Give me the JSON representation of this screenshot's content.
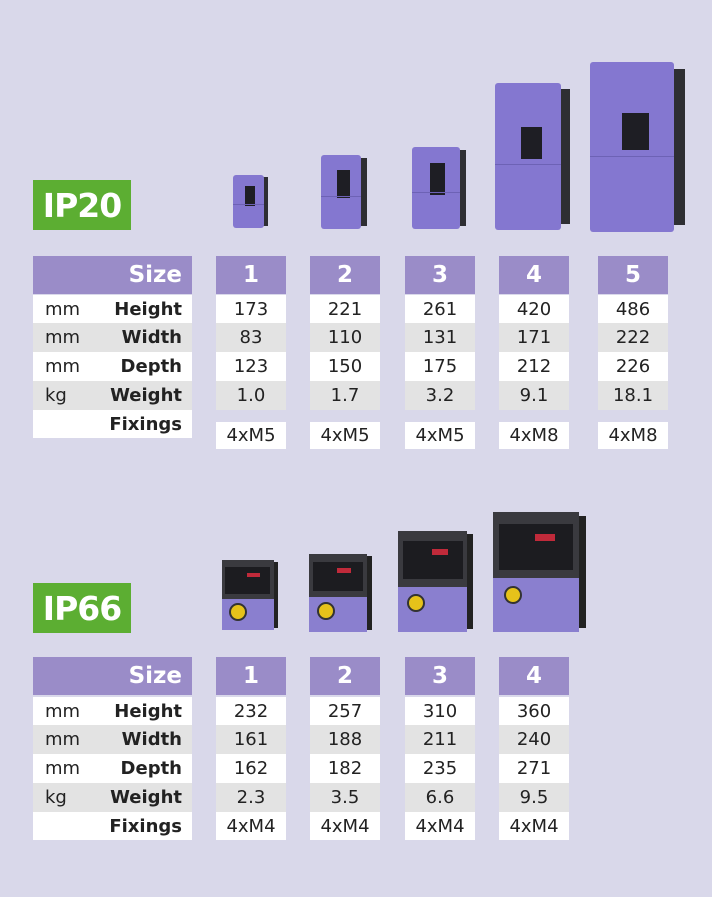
{
  "sections": [
    {
      "badge": "IP20",
      "size_label": "Size",
      "sizes": [
        "1",
        "2",
        "3",
        "4",
        "5"
      ],
      "rows": [
        {
          "unit": "mm",
          "label": "Height",
          "values": [
            "173",
            "221",
            "261",
            "420",
            "486"
          ]
        },
        {
          "unit": "mm",
          "label": "Width",
          "values": [
            "83",
            "110",
            "131",
            "171",
            "222"
          ]
        },
        {
          "unit": "mm",
          "label": "Depth",
          "values": [
            "123",
            "150",
            "175",
            "212",
            "226"
          ]
        },
        {
          "unit": "kg",
          "label": "Weight",
          "values": [
            "1.0",
            "1.7",
            "3.2",
            "9.1",
            "18.1"
          ]
        },
        {
          "unit": "",
          "label": "Fixings",
          "values": [
            "4xM5",
            "4xM5",
            "4xM5",
            "4xM8",
            "4xM8"
          ]
        }
      ]
    },
    {
      "badge": "IP66",
      "size_label": "Size",
      "sizes": [
        "1",
        "2",
        "3",
        "4"
      ],
      "rows": [
        {
          "unit": "mm",
          "label": "Height",
          "values": [
            "232",
            "257",
            "310",
            "360"
          ]
        },
        {
          "unit": "mm",
          "label": "Width",
          "values": [
            "161",
            "188",
            "211",
            "240"
          ]
        },
        {
          "unit": "mm",
          "label": "Depth",
          "values": [
            "162",
            "182",
            "235",
            "271"
          ]
        },
        {
          "unit": "kg",
          "label": "Weight",
          "values": [
            "2.3",
            "3.5",
            "6.6",
            "9.5"
          ]
        },
        {
          "unit": "",
          "label": "Fixings",
          "values": [
            "4xM4",
            "4xM4",
            "4xM4",
            "4xM4"
          ]
        }
      ]
    }
  ],
  "colors": {
    "badge": "#5cae32",
    "header": "#9a8cc8",
    "background": "#d9d8ea",
    "device_body": "#8477d0",
    "device_dark": "#2e2e33"
  }
}
